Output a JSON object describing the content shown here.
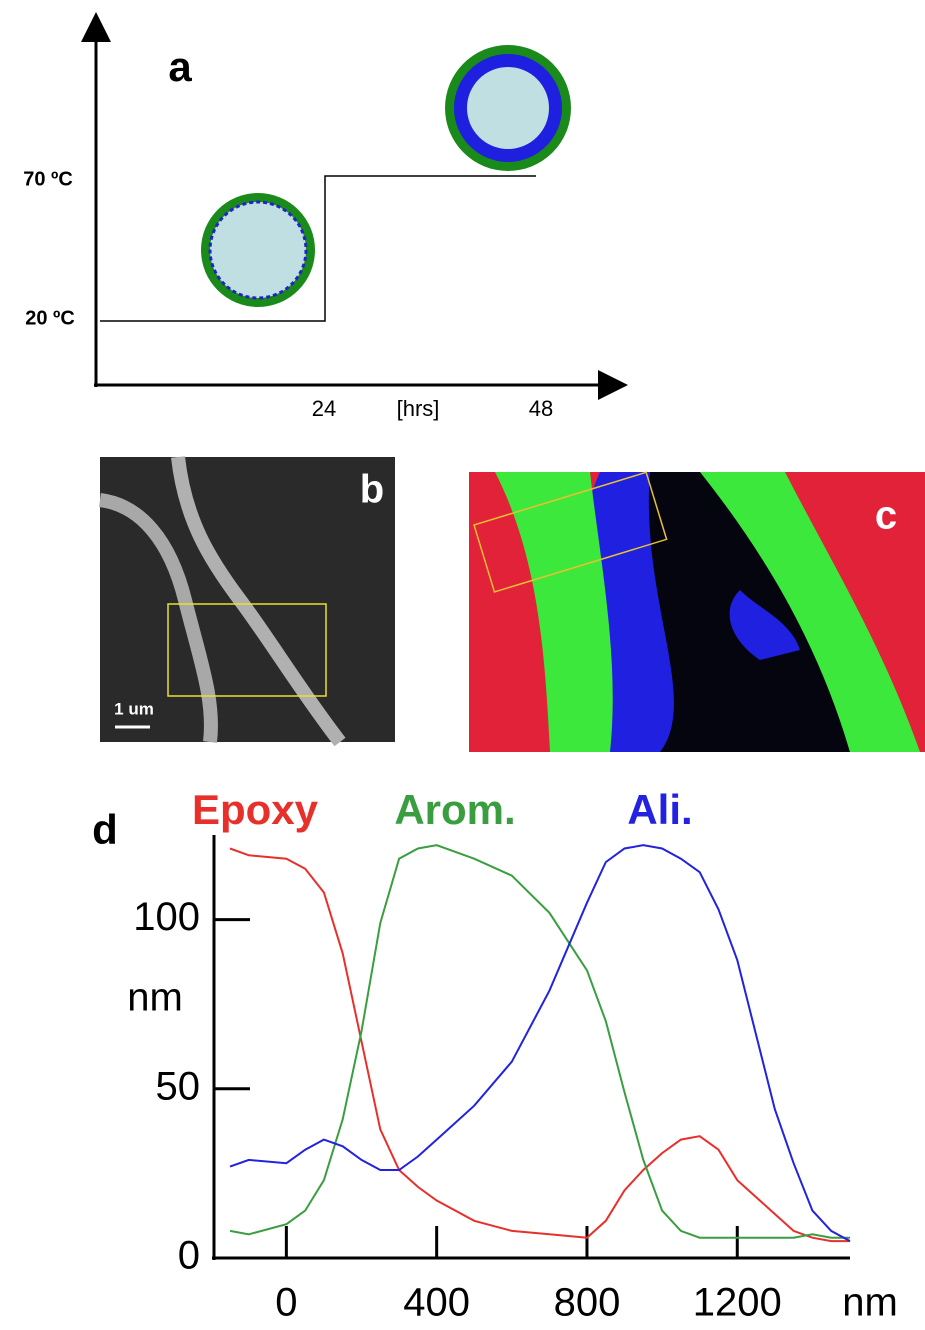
{
  "panel_a": {
    "label": "a",
    "y_labels": [
      "70 ºC",
      "20 ºC"
    ],
    "x_labels": [
      "24",
      "[hrs]",
      "48"
    ]
  },
  "panel_b": {
    "label": "b",
    "scale_bar": "1 um"
  },
  "panel_c": {
    "label": "c"
  },
  "chart_data": {
    "type": "line",
    "panel_label": "d",
    "y_label": "nm",
    "x_label": "nm",
    "x": [
      -150,
      -100,
      0,
      50,
      100,
      150,
      200,
      250,
      300,
      350,
      400,
      500,
      600,
      700,
      800,
      850,
      900,
      950,
      1000,
      1050,
      1100,
      1150,
      1200,
      1300,
      1350,
      1400,
      1450,
      1500
    ],
    "series": [
      {
        "name": "Epoxy",
        "color": "#e8302a",
        "values": [
          121,
          119,
          118,
          115,
          108,
          90,
          64,
          38,
          26,
          21,
          17,
          11,
          8,
          7,
          6,
          11,
          20,
          26,
          31,
          35,
          36,
          32,
          23,
          13,
          8,
          6,
          5,
          5
        ]
      },
      {
        "name": "Arom.",
        "color": "#3a9e40",
        "values": [
          8,
          7,
          10,
          14,
          23,
          41,
          67,
          99,
          118,
          121,
          122,
          118,
          113,
          102,
          85,
          70,
          49,
          29,
          14,
          8,
          6,
          6,
          6,
          6,
          6,
          7,
          6,
          6
        ]
      },
      {
        "name": "Ali.",
        "color": "#2222e0",
        "values": [
          27,
          29,
          28,
          32,
          35,
          33,
          29,
          26,
          26,
          30,
          35,
          45,
          58,
          79,
          105,
          117,
          121,
          122,
          121,
          118,
          114,
          103,
          88,
          44,
          28,
          14,
          8,
          5
        ]
      }
    ],
    "xlim": [
      -150,
      1500
    ],
    "ylim": [
      0,
      125
    ],
    "xticks": [
      0,
      400,
      800,
      1200
    ],
    "yticks": [
      0,
      50,
      100
    ]
  }
}
